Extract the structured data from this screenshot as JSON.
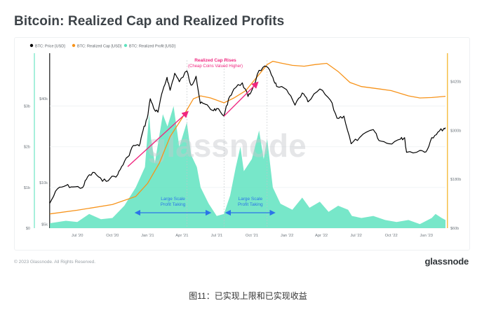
{
  "title": "Bitcoin: Realized Cap and Realized Profits",
  "footer": {
    "copyright": "© 2023 Glassnode. All Rights Reserved.",
    "logo": "glassnode"
  },
  "caption": "图11：已实现上限和已实现收益",
  "colors": {
    "price": "#000000",
    "realized_cap": "#f7931a",
    "realized_profit": "#5fe3bf",
    "annotation_pink": "#f0267f",
    "annotation_blue": "#2b74e8",
    "axis_right": "#f5c04a"
  },
  "chart_data": {
    "type": "line",
    "watermark": "glassnode",
    "legend": {
      "position": "top-left",
      "items": [
        "BTC: Price [USD]",
        "BTC: Realized Cap [USD]",
        "BTC: Realized Profit [USD]"
      ]
    },
    "x_range": [
      "2020-04-20",
      "2023-02-20"
    ],
    "x_ticks": [
      {
        "date": "2020-07-01",
        "label": "Jul '20"
      },
      {
        "date": "2020-10-01",
        "label": "Oct '20"
      },
      {
        "date": "2021-01-01",
        "label": "Jan '21"
      },
      {
        "date": "2021-04-01",
        "label": "Apr '21"
      },
      {
        "date": "2021-07-01",
        "label": "Jul '21"
      },
      {
        "date": "2021-10-01",
        "label": "Oct '21"
      },
      {
        "date": "2022-01-01",
        "label": "Jan '22"
      },
      {
        "date": "2022-04-01",
        "label": "Apr '22"
      },
      {
        "date": "2022-07-01",
        "label": "Jul '22"
      },
      {
        "date": "2022-10-01",
        "label": "Oct '22"
      },
      {
        "date": "2023-01-01",
        "label": "Jan '23"
      }
    ],
    "y_left_outer": {
      "ticks": [
        "$0",
        "$1b",
        "$2b",
        "$3b"
      ],
      "values": [
        0,
        1,
        2,
        3
      ],
      "unit": "billion USD",
      "range": [
        0,
        4.3
      ]
    },
    "y_left_inner": {
      "ticks": [
        "$5k",
        "$10k",
        "$40k"
      ],
      "values": [
        5000,
        10000,
        40000
      ],
      "scale": "log",
      "range": [
        4700,
        85000
      ]
    },
    "y_right": {
      "ticks": [
        "$420b",
        "$300b",
        "$180b",
        "$60b"
      ],
      "values": [
        420,
        300,
        180,
        60
      ],
      "unit": "billion USD",
      "range": [
        60,
        490
      ]
    },
    "series": [
      {
        "name": "BTC: Price [USD]",
        "axis": "left-inner",
        "points": [
          [
            "2020-04-20",
            7100
          ],
          [
            "2020-05-10",
            9000
          ],
          [
            "2020-06-01",
            9500
          ],
          [
            "2020-06-20",
            9300
          ],
          [
            "2020-07-15",
            9200
          ],
          [
            "2020-07-28",
            11000
          ],
          [
            "2020-08-15",
            11800
          ],
          [
            "2020-09-05",
            10200
          ],
          [
            "2020-09-25",
            10700
          ],
          [
            "2020-10-15",
            11400
          ],
          [
            "2020-10-25",
            13000
          ],
          [
            "2020-11-10",
            15300
          ],
          [
            "2020-11-25",
            18500
          ],
          [
            "2020-12-10",
            18300
          ],
          [
            "2020-12-20",
            23500
          ],
          [
            "2020-12-31",
            29000
          ],
          [
            "2021-01-08",
            40000
          ],
          [
            "2021-01-20",
            33000
          ],
          [
            "2021-01-28",
            32000
          ],
          [
            "2021-02-10",
            46000
          ],
          [
            "2021-02-21",
            57000
          ],
          [
            "2021-03-01",
            46000
          ],
          [
            "2021-03-13",
            61000
          ],
          [
            "2021-03-25",
            53000
          ],
          [
            "2021-04-14",
            63500
          ],
          [
            "2021-04-25",
            50000
          ],
          [
            "2021-05-08",
            58000
          ],
          [
            "2021-05-19",
            37000
          ],
          [
            "2021-06-01",
            36500
          ],
          [
            "2021-06-20",
            33000
          ],
          [
            "2021-07-01",
            34000
          ],
          [
            "2021-07-20",
            30000
          ],
          [
            "2021-08-01",
            40000
          ],
          [
            "2021-08-15",
            47000
          ],
          [
            "2021-09-06",
            52000
          ],
          [
            "2021-09-21",
            41500
          ],
          [
            "2021-10-01",
            46000
          ],
          [
            "2021-10-20",
            64000
          ],
          [
            "2021-11-09",
            68000
          ],
          [
            "2021-11-25",
            57000
          ],
          [
            "2021-12-05",
            49000
          ],
          [
            "2021-12-31",
            46500
          ],
          [
            "2022-01-22",
            36000
          ],
          [
            "2022-02-10",
            44000
          ],
          [
            "2022-02-25",
            38000
          ],
          [
            "2022-03-28",
            47000
          ],
          [
            "2022-04-25",
            39000
          ],
          [
            "2022-05-12",
            29000
          ],
          [
            "2022-05-30",
            30000
          ],
          [
            "2022-06-18",
            19000
          ],
          [
            "2022-07-10",
            21000
          ],
          [
            "2022-08-15",
            24000
          ],
          [
            "2022-08-30",
            20000
          ],
          [
            "2022-09-25",
            19000
          ],
          [
            "2022-10-25",
            20500
          ],
          [
            "2022-11-05",
            21000
          ],
          [
            "2022-11-10",
            16500
          ],
          [
            "2022-12-15",
            17000
          ],
          [
            "2022-12-31",
            16600
          ],
          [
            "2023-01-15",
            21000
          ],
          [
            "2023-01-31",
            23000
          ],
          [
            "2023-02-16",
            24500
          ],
          [
            "2023-02-20",
            24500
          ]
        ]
      },
      {
        "name": "BTC: Realized Cap [USD]",
        "axis": "right",
        "points": [
          [
            "2020-04-20",
            95
          ],
          [
            "2020-07-01",
            104
          ],
          [
            "2020-10-01",
            118
          ],
          [
            "2020-12-01",
            138
          ],
          [
            "2021-01-01",
            170
          ],
          [
            "2021-02-01",
            220
          ],
          [
            "2021-03-01",
            285
          ],
          [
            "2021-04-01",
            330
          ],
          [
            "2021-05-01",
            378
          ],
          [
            "2021-05-20",
            385
          ],
          [
            "2021-06-15",
            380
          ],
          [
            "2021-07-20",
            368
          ],
          [
            "2021-08-15",
            380
          ],
          [
            "2021-09-15",
            398
          ],
          [
            "2021-10-15",
            432
          ],
          [
            "2021-11-10",
            462
          ],
          [
            "2021-11-25",
            470
          ],
          [
            "2021-12-15",
            466
          ],
          [
            "2022-01-15",
            460
          ],
          [
            "2022-02-15",
            458
          ],
          [
            "2022-03-15",
            462
          ],
          [
            "2022-04-15",
            465
          ],
          [
            "2022-05-15",
            445
          ],
          [
            "2022-06-15",
            418
          ],
          [
            "2022-07-15",
            408
          ],
          [
            "2022-09-01",
            402
          ],
          [
            "2022-10-01",
            398
          ],
          [
            "2022-11-15",
            385
          ],
          [
            "2022-12-15",
            380
          ],
          [
            "2023-01-15",
            381
          ],
          [
            "2023-02-20",
            384
          ]
        ]
      },
      {
        "name": "BTC: Realized Profit [USD]",
        "axis": "left-outer",
        "type": "area",
        "points": [
          [
            "2020-04-20",
            0.12
          ],
          [
            "2020-06-01",
            0.18
          ],
          [
            "2020-07-01",
            0.15
          ],
          [
            "2020-08-01",
            0.35
          ],
          [
            "2020-09-01",
            0.22
          ],
          [
            "2020-10-01",
            0.25
          ],
          [
            "2020-11-01",
            0.55
          ],
          [
            "2020-12-01",
            1.0
          ],
          [
            "2020-12-25",
            1.5
          ],
          [
            "2021-01-05",
            2.8
          ],
          [
            "2021-01-10",
            2.2
          ],
          [
            "2021-01-20",
            1.6
          ],
          [
            "2021-02-10",
            2.8
          ],
          [
            "2021-02-22",
            2.5
          ],
          [
            "2021-03-10",
            3.0
          ],
          [
            "2021-03-25",
            2.0
          ],
          [
            "2021-04-14",
            2.6
          ],
          [
            "2021-04-25",
            1.8
          ],
          [
            "2021-05-10",
            1.5
          ],
          [
            "2021-05-20",
            1.0
          ],
          [
            "2021-06-10",
            0.6
          ],
          [
            "2021-07-01",
            0.3
          ],
          [
            "2021-07-20",
            0.35
          ],
          [
            "2021-08-05",
            0.8
          ],
          [
            "2021-08-20",
            1.5
          ],
          [
            "2021-09-01",
            2.0
          ],
          [
            "2021-09-10",
            1.4
          ],
          [
            "2021-10-01",
            1.7
          ],
          [
            "2021-10-20",
            2.4
          ],
          [
            "2021-11-01",
            1.7
          ],
          [
            "2021-11-10",
            2.2
          ],
          [
            "2021-11-25",
            1.0
          ],
          [
            "2021-12-15",
            0.6
          ],
          [
            "2022-01-15",
            0.45
          ],
          [
            "2022-02-10",
            0.75
          ],
          [
            "2022-03-01",
            0.5
          ],
          [
            "2022-03-28",
            0.65
          ],
          [
            "2022-04-20",
            0.4
          ],
          [
            "2022-05-15",
            0.55
          ],
          [
            "2022-06-10",
            0.45
          ],
          [
            "2022-06-20",
            0.3
          ],
          [
            "2022-07-15",
            0.25
          ],
          [
            "2022-08-15",
            0.3
          ],
          [
            "2022-09-15",
            0.2
          ],
          [
            "2022-10-15",
            0.15
          ],
          [
            "2022-11-15",
            0.2
          ],
          [
            "2022-12-15",
            0.1
          ],
          [
            "2023-01-15",
            0.25
          ],
          [
            "2023-01-25",
            0.35
          ],
          [
            "2023-02-10",
            0.25
          ],
          [
            "2023-02-20",
            0.2
          ]
        ]
      }
    ],
    "annotations": [
      {
        "type": "text",
        "lines": [
          "Realized Cap Rises",
          "(Cheap Coins Valued Higher)"
        ],
        "color": "pink"
      },
      {
        "type": "arrow",
        "from": [
          "2020-11-10",
          13000
        ],
        "to": [
          "2021-04-15",
          32000
        ],
        "color": "pink"
      },
      {
        "type": "arrow",
        "from": [
          "2021-07-20",
          30000
        ],
        "to": [
          "2021-10-15",
          52000
        ],
        "color": "pink"
      },
      {
        "type": "text",
        "lines": [
          "Large Scale",
          "Profit Taking"
        ],
        "color": "blue",
        "range": [
          "2020-11-25",
          "2021-06-20"
        ]
      },
      {
        "type": "text",
        "lines": [
          "Large Scale",
          "Profit Taking"
        ],
        "color": "blue",
        "range": [
          "2021-07-20",
          "2021-12-05"
        ]
      }
    ],
    "vertical_guides": [
      "2021-04-14",
      "2021-07-20",
      "2021-11-10"
    ]
  }
}
